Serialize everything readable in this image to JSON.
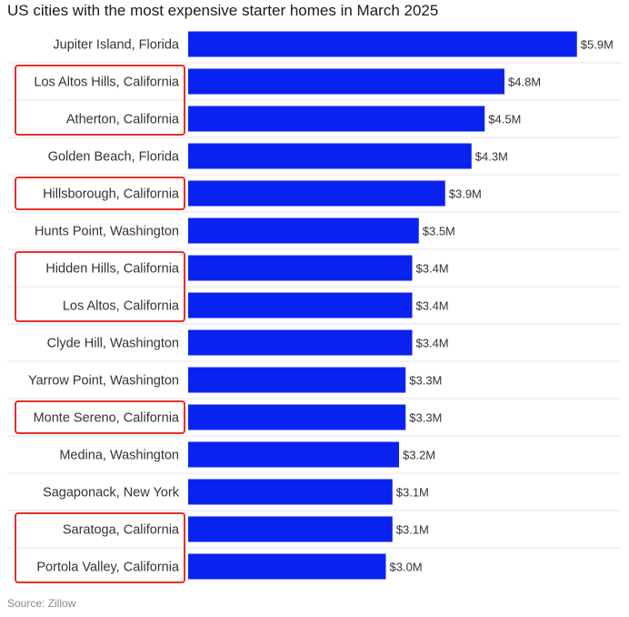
{
  "chart_data": {
    "type": "bar",
    "orientation": "horizontal",
    "title": "US cities with the most expensive starter homes in March 2025",
    "source": "Source: Zillow",
    "categories": [
      "Jupiter Island, Florida",
      "Los Altos Hills, California",
      "Atherton, California",
      "Golden Beach, Florida",
      "Hillsborough, California",
      "Hunts Point, Washington",
      "Hidden Hills, California",
      "Los Altos, California",
      "Clyde Hill, Washington",
      "Yarrow Point, Washington",
      "Monte Sereno, California",
      "Medina, Washington",
      "Sagaponack, New York",
      "Saratoga, California",
      "Portola Valley, California"
    ],
    "values": [
      5.9,
      4.8,
      4.5,
      4.3,
      3.9,
      3.5,
      3.4,
      3.4,
      3.4,
      3.3,
      3.3,
      3.2,
      3.1,
      3.1,
      3.0
    ],
    "value_labels": [
      "$5.9M",
      "$4.8M",
      "$4.5M",
      "$4.3M",
      "$3.9M",
      "$3.5M",
      "$3.4M",
      "$3.4M",
      "$3.4M",
      "$3.3M",
      "$3.3M",
      "$3.2M",
      "$3.1M",
      "$3.1M",
      "$3.0M"
    ],
    "highlight_groups": [
      [
        1,
        2
      ],
      [
        4
      ],
      [
        6,
        7
      ],
      [
        10
      ],
      [
        13,
        14
      ]
    ],
    "bar_color": "#0a22f0",
    "highlight_box_color": "#e0332b",
    "divider_color": "#e6e6e6",
    "grid": false,
    "legend": "none"
  }
}
